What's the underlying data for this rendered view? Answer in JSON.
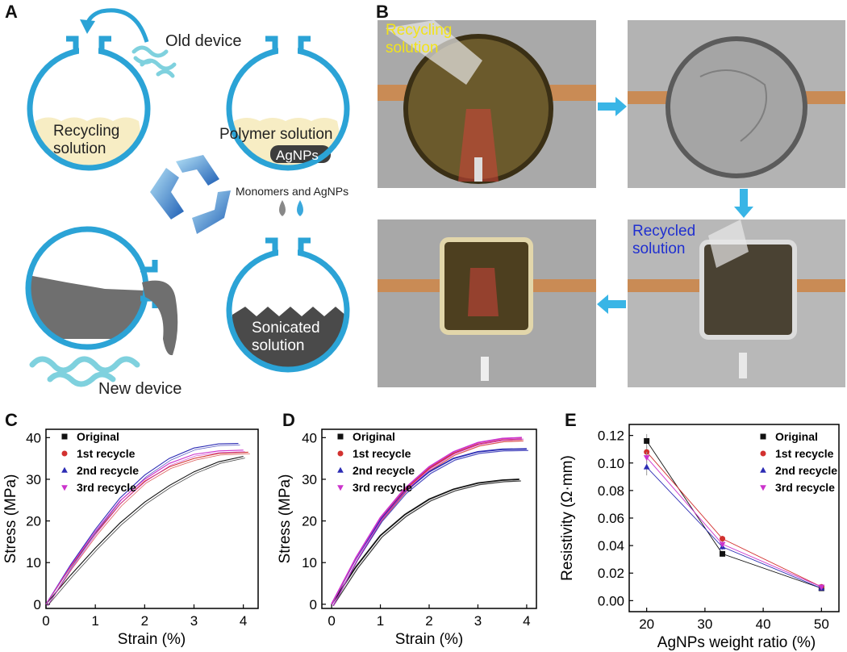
{
  "panel_letters": {
    "a": "A",
    "b": "B",
    "c": "C",
    "d": "D",
    "e": "E"
  },
  "panel_a": {
    "old_device": "Old device",
    "recycling_solution": "Recycling\nsolution",
    "polymer_solution": "Polymer solution",
    "agnps": "AgNPs",
    "monomers_agnps": "Monomers and AgNPs",
    "sonicated_solution": "Sonicated\nsolution",
    "new_device": "New device"
  },
  "panel_b": {
    "recycling_solution": "Recycling\nsolution",
    "recycled_solution": "Recycled\nsolution"
  },
  "colors": {
    "original": "#111111",
    "recycle1": "#d2312f",
    "recycle2": "#2c2cb4",
    "recycle3": "#cc33cc",
    "flask": "#2ba3d6",
    "arrow": "#39b5e6"
  },
  "chart_data": [
    {
      "type": "line",
      "panel": "C",
      "xlabel": "Strain (%)",
      "ylabel": "Stress (MPa)",
      "xlim": [
        0,
        4.3
      ],
      "ylim": [
        -1,
        42
      ],
      "xticks": [
        0,
        1,
        2,
        3,
        4
      ],
      "yticks": [
        0,
        10,
        20,
        30,
        40
      ],
      "legend_position": "top-left",
      "series": [
        {
          "name": "Original",
          "color": "#111111",
          "marker": "square",
          "x": [
            0,
            0.5,
            1.0,
            1.5,
            2.0,
            2.5,
            3.0,
            3.5,
            4.0
          ],
          "y": [
            0,
            7,
            13.5,
            19.5,
            24.5,
            28.5,
            31.8,
            34.2,
            35.5
          ]
        },
        {
          "name": "1st recycle",
          "color": "#d2312f",
          "marker": "circle",
          "x": [
            0,
            0.5,
            1.0,
            1.5,
            2.0,
            2.5,
            3.0,
            3.5,
            4.1
          ],
          "y": [
            0,
            9,
            17,
            24,
            29.5,
            33,
            35,
            36.2,
            36.5
          ]
        },
        {
          "name": "2nd recycle",
          "color": "#2c2cb4",
          "marker": "triangle-up",
          "x": [
            0,
            0.5,
            1.0,
            1.5,
            2.0,
            2.5,
            3.0,
            3.5,
            3.9
          ],
          "y": [
            0,
            9.5,
            18,
            25.5,
            31,
            35,
            37.5,
            38.5,
            38.6
          ]
        },
        {
          "name": "3rd recycle",
          "color": "#cc33cc",
          "marker": "triangle-down",
          "x": [
            0,
            0.5,
            1.0,
            1.5,
            2.0,
            2.5,
            3.0,
            3.5,
            4.0
          ],
          "y": [
            0,
            9.2,
            17.5,
            24.8,
            30,
            33.8,
            36,
            36.8,
            37
          ]
        }
      ]
    },
    {
      "type": "line",
      "panel": "D",
      "xlabel": "Strain (%)",
      "ylabel": "Stress (MPa)",
      "xlim": [
        -0.2,
        4.2
      ],
      "ylim": [
        -1,
        42
      ],
      "xticks": [
        0,
        1,
        2,
        3,
        4
      ],
      "yticks": [
        0,
        10,
        20,
        30,
        40
      ],
      "legend_position": "top-left",
      "series": [
        {
          "name": "Original",
          "color": "#111111",
          "marker": "square",
          "x": [
            0,
            0.5,
            1.0,
            1.5,
            2.0,
            2.5,
            3.0,
            3.5,
            3.85
          ],
          "y": [
            0,
            9,
            16.5,
            21.5,
            25.2,
            27.6,
            29.1,
            29.8,
            30
          ]
        },
        {
          "name": "1st recycle",
          "color": "#d2312f",
          "marker": "circle",
          "x": [
            0,
            0.5,
            1.0,
            1.5,
            2.0,
            2.5,
            3.0,
            3.5,
            3.9
          ],
          "y": [
            0,
            11,
            20.5,
            27.5,
            32.6,
            36.2,
            38.4,
            39.4,
            39.6
          ]
        },
        {
          "name": "2nd recycle",
          "color": "#2c2cb4",
          "marker": "triangle-up",
          "x": [
            0,
            0.5,
            1.0,
            1.5,
            2.0,
            2.5,
            3.0,
            3.5,
            4.0
          ],
          "y": [
            0,
            11,
            20.2,
            27,
            31.8,
            35,
            36.6,
            37.2,
            37.3
          ]
        },
        {
          "name": "3rd recycle",
          "color": "#cc33cc",
          "marker": "triangle-down",
          "x": [
            0,
            0.5,
            1.0,
            1.5,
            2.0,
            2.5,
            3.0,
            3.5,
            3.9
          ],
          "y": [
            0,
            11.2,
            20.8,
            27.8,
            33,
            36.6,
            38.8,
            39.8,
            40
          ]
        }
      ]
    },
    {
      "type": "scatter",
      "panel": "E",
      "xlabel": "AgNPs weight ratio (%)",
      "ylabel": "Resistivity (Ω·mm)",
      "xlim": [
        17,
        53
      ],
      "ylim": [
        -0.008,
        0.128
      ],
      "xticks": [
        20,
        30,
        40,
        50
      ],
      "yticks": [
        0.0,
        0.02,
        0.04,
        0.06,
        0.08,
        0.1,
        0.12
      ],
      "ytick_labels": [
        "0.00",
        "0.02",
        "0.04",
        "0.06",
        "0.08",
        "0.10",
        "0.12"
      ],
      "legend_position": "top-right",
      "series": [
        {
          "name": "Original",
          "color": "#111111",
          "marker": "square",
          "x": [
            20,
            33,
            50
          ],
          "y": [
            0.116,
            0.034,
            0.009
          ],
          "err": [
            0.005,
            0.002,
            0.001
          ]
        },
        {
          "name": "1st recycle",
          "color": "#d2312f",
          "marker": "circle",
          "x": [
            20,
            33,
            50
          ],
          "y": [
            0.108,
            0.045,
            0.01
          ],
          "err": [
            0.004,
            0.002,
            0.001
          ]
        },
        {
          "name": "2nd recycle",
          "color": "#2c2cb4",
          "marker": "triangle-up",
          "x": [
            20,
            33,
            50
          ],
          "y": [
            0.097,
            0.039,
            0.009
          ],
          "err": [
            0.006,
            0.002,
            0.001
          ]
        },
        {
          "name": "3rd recycle",
          "color": "#cc33cc",
          "marker": "triangle-down",
          "x": [
            20,
            33,
            50
          ],
          "y": [
            0.104,
            0.041,
            0.01
          ],
          "err": [
            0.004,
            0.002,
            0.001
          ]
        }
      ]
    }
  ]
}
